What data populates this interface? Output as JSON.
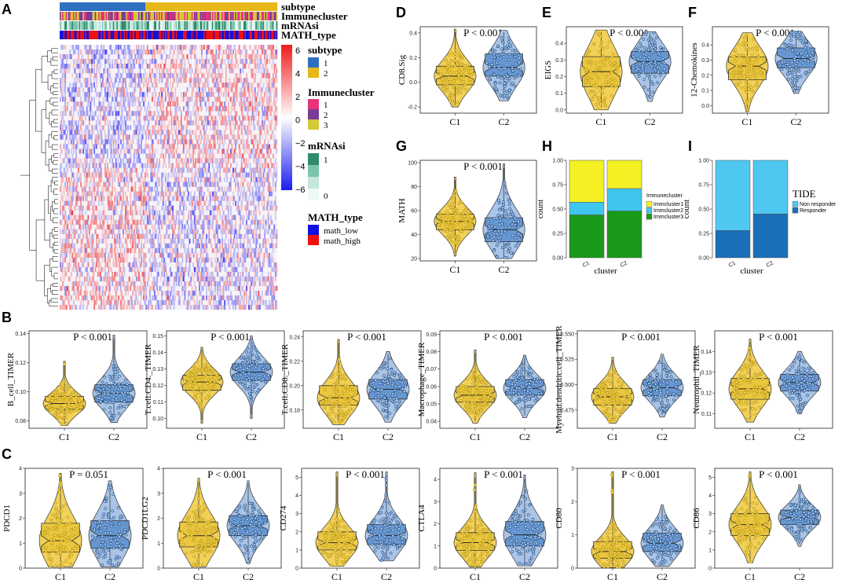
{
  "panel_letters": {
    "A": "A",
    "B": "B",
    "C": "C",
    "D": "D",
    "E": "E",
    "F": "F",
    "G": "G",
    "H": "H",
    "I": "I"
  },
  "colors": {
    "c1_fill": "#f2d15a",
    "c1_stroke": "#b8960a",
    "c1_box": "#e9c53a",
    "c2_fill": "#a9c4e6",
    "c2_stroke": "#1f4e87",
    "c2_box": "#5b8fcf",
    "heat_low": "#1c1cf0",
    "heat_mid": "#ffffff",
    "heat_high": "#f01c1c",
    "subtype1": "#2f6fc0",
    "subtype2": "#e8b818",
    "imm1": "#e8337a",
    "imm2": "#7a3c96",
    "imm3": "#d4c83a",
    "mrna_hi": "#2e8b6a",
    "mrna_lo": "#e8f5f2",
    "math_low": "#1010e0",
    "math_high": "#f01010",
    "h_imm1": "#f4f024",
    "h_imm2": "#3ec6ee",
    "h_imm3": "#1a9a1a",
    "i_nonresp": "#4ec8f0",
    "i_resp": "#1a6fb8"
  },
  "heatmap": {
    "annotations": [
      "subtype",
      "Immunecluster",
      "mRNAsi",
      "MATH_type"
    ],
    "colorbar_ticks": [
      "6",
      "4",
      "2",
      "0",
      "−2",
      "−4",
      "−6"
    ],
    "legend": {
      "subtype": {
        "title": "subtype",
        "items": [
          "1",
          "2"
        ]
      },
      "immunecluster": {
        "title": "Immunecluster",
        "items": [
          "1",
          "2",
          "3"
        ]
      },
      "mrnasi": {
        "title": "mRNAsi",
        "items": [
          "1",
          "0"
        ]
      },
      "math_type": {
        "title": "MATH_type",
        "items": [
          "math_low",
          "math_high"
        ]
      }
    }
  },
  "chart_data": [
    {
      "id": "D",
      "type": "violin",
      "ylabel": "CD8.Sig",
      "pvalue": "P < 0.001",
      "categories": [
        "C1",
        "C2"
      ],
      "ylim": [
        -0.25,
        0.45
      ],
      "yticks": [
        "-0.2",
        "0.0",
        "0.2",
        "0.4"
      ],
      "ytick_values": [
        -0.2,
        0.0,
        0.2,
        0.4
      ],
      "series": [
        {
          "name": "C1",
          "min": -0.2,
          "q1": -0.02,
          "median": 0.05,
          "q3": 0.13,
          "max": 0.43
        },
        {
          "name": "C2",
          "min": -0.15,
          "q1": 0.05,
          "median": 0.12,
          "q3": 0.23,
          "max": 0.42
        }
      ]
    },
    {
      "id": "E",
      "type": "violin",
      "ylabel": "EIGS",
      "pvalue": "P < 0.001",
      "categories": [
        "C1",
        "C2"
      ],
      "ylim": [
        -0.02,
        0.5
      ],
      "yticks": [
        "0.0",
        "0.1",
        "0.2",
        "0.3",
        "0.4"
      ],
      "ytick_values": [
        0.0,
        0.1,
        0.2,
        0.3,
        0.4
      ],
      "series": [
        {
          "name": "C1",
          "min": 0.0,
          "q1": 0.14,
          "median": 0.23,
          "q3": 0.32,
          "max": 0.48
        },
        {
          "name": "C2",
          "min": 0.05,
          "q1": 0.22,
          "median": 0.29,
          "q3": 0.35,
          "max": 0.47
        }
      ]
    },
    {
      "id": "F",
      "type": "violin",
      "ylabel": "12-Chemokines",
      "pvalue": "P < 0.001",
      "categories": [
        "C1",
        "C2"
      ],
      "ylim": [
        -0.05,
        0.52
      ],
      "yticks": [
        "0.0",
        "0.1",
        "0.2",
        "0.3",
        "0.4"
      ],
      "ytick_values": [
        0.0,
        0.1,
        0.2,
        0.3,
        0.4
      ],
      "series": [
        {
          "name": "C1",
          "min": -0.04,
          "q1": 0.17,
          "median": 0.26,
          "q3": 0.32,
          "max": 0.48
        },
        {
          "name": "C2",
          "min": 0.08,
          "q1": 0.25,
          "median": 0.31,
          "q3": 0.38,
          "max": 0.49
        }
      ]
    },
    {
      "id": "G",
      "type": "violin",
      "ylabel": "MATH",
      "pvalue": "P < 0.001",
      "categories": [
        "C1",
        "C2"
      ],
      "ylim": [
        18,
        102
      ],
      "yticks": [
        "20",
        "40",
        "60",
        "80",
        "100"
      ],
      "ytick_values": [
        20,
        40,
        60,
        80,
        100
      ],
      "series": [
        {
          "name": "C1",
          "min": 22,
          "q1": 44,
          "median": 51,
          "q3": 57,
          "max": 88
        },
        {
          "name": "C2",
          "min": 20,
          "q1": 34,
          "median": 44,
          "q3": 54,
          "max": 99
        }
      ]
    },
    {
      "id": "H",
      "type": "stacked_bar",
      "xlabel": "cluster",
      "ylabel": "count",
      "categories": [
        "C1",
        "C2"
      ],
      "ylim": [
        0,
        1
      ],
      "yticks": [
        "0.00",
        "0.25",
        "0.50",
        "0.75",
        "1.00"
      ],
      "ytick_values": [
        0,
        0.25,
        0.5,
        0.75,
        1.0
      ],
      "legend_title": "Immunecluster",
      "series": [
        {
          "name": "Immcluster3",
          "values": [
            0.44,
            0.48
          ]
        },
        {
          "name": "Immcluster2",
          "values": [
            0.13,
            0.23
          ]
        },
        {
          "name": "Immcluster1",
          "values": [
            0.43,
            0.29
          ]
        }
      ],
      "legend_order": [
        "Immcluster1",
        "Immcluster2",
        "Immcluster3"
      ]
    },
    {
      "id": "I",
      "type": "stacked_bar",
      "xlabel": "cluster",
      "ylabel": "count",
      "categories": [
        "C1",
        "C2"
      ],
      "ylim": [
        0,
        1
      ],
      "yticks": [
        "0.00",
        "0.25",
        "0.50",
        "0.75",
        "1.00"
      ],
      "ytick_values": [
        0,
        0.25,
        0.5,
        0.75,
        1.0
      ],
      "legend_title": "TIDE",
      "series": [
        {
          "name": "Responder",
          "values": [
            0.28,
            0.45
          ]
        },
        {
          "name": "Non responder",
          "values": [
            0.72,
            0.55
          ]
        }
      ],
      "legend_order": [
        "Non responder",
        "Responder"
      ]
    },
    {
      "id": "B1",
      "type": "violin",
      "ylabel": "B_cell_TIMER",
      "pvalue": "P < 0.001",
      "categories": [
        "C1",
        "C2"
      ],
      "ylim": [
        0.075,
        0.142
      ],
      "yticks": [
        "0.08",
        "0.10",
        "0.12",
        "0.14"
      ],
      "ytick_values": [
        0.08,
        0.1,
        0.12,
        0.14
      ],
      "series": [
        {
          "name": "C1",
          "min": 0.077,
          "q1": 0.088,
          "median": 0.092,
          "q3": 0.097,
          "max": 0.121
        },
        {
          "name": "C2",
          "min": 0.079,
          "q1": 0.093,
          "median": 0.099,
          "q3": 0.105,
          "max": 0.139
        }
      ]
    },
    {
      "id": "B2",
      "type": "violin",
      "ylabel": "T.cell.CD4._TIMER",
      "pvalue": "P < 0.001",
      "categories": [
        "C1",
        "C2"
      ],
      "ylim": [
        0.094,
        0.153
      ],
      "yticks": [
        "0.10",
        "0.11",
        "0.12",
        "0.13",
        "0.14",
        "0.15"
      ],
      "ytick_values": [
        0.1,
        0.11,
        0.12,
        0.13,
        0.14,
        0.15
      ],
      "series": [
        {
          "name": "C1",
          "min": 0.097,
          "q1": 0.117,
          "median": 0.122,
          "q3": 0.126,
          "max": 0.143
        },
        {
          "name": "C2",
          "min": 0.1,
          "q1": 0.123,
          "median": 0.128,
          "q3": 0.133,
          "max": 0.15
        }
      ]
    },
    {
      "id": "B3",
      "type": "violin",
      "ylabel": "T.cell.CD8._TIMER",
      "pvalue": "P < 0.001",
      "categories": [
        "C1",
        "C2"
      ],
      "ylim": [
        0.165,
        0.245
      ],
      "yticks": [
        "0.18",
        "0.20",
        "0.22",
        "0.24"
      ],
      "ytick_values": [
        0.18,
        0.2,
        0.22,
        0.24
      ],
      "series": [
        {
          "name": "C1",
          "min": 0.168,
          "q1": 0.184,
          "median": 0.19,
          "q3": 0.2,
          "max": 0.238
        },
        {
          "name": "C2",
          "min": 0.17,
          "q1": 0.189,
          "median": 0.197,
          "q3": 0.205,
          "max": 0.228
        }
      ]
    },
    {
      "id": "B4",
      "type": "violin",
      "ylabel": "Macrophage_TIMER",
      "pvalue": "P < 0.001",
      "categories": [
        "C1",
        "C2"
      ],
      "ylim": [
        0.036,
        0.092
      ],
      "yticks": [
        "0.04",
        "0.05",
        "0.06",
        "0.07",
        "0.08",
        "0.09"
      ],
      "ytick_values": [
        0.04,
        0.05,
        0.06,
        0.07,
        0.08,
        0.09
      ],
      "series": [
        {
          "name": "C1",
          "min": 0.039,
          "q1": 0.051,
          "median": 0.055,
          "q3": 0.06,
          "max": 0.081
        },
        {
          "name": "C2",
          "min": 0.042,
          "q1": 0.055,
          "median": 0.059,
          "q3": 0.064,
          "max": 0.078
        }
      ]
    },
    {
      "id": "B5",
      "type": "violin",
      "ylabel": "Myeloid.dendritic.cell_TIMER",
      "pvalue": "P < 0.001",
      "categories": [
        "C1",
        "C2"
      ],
      "ylim": [
        0.457,
        0.553
      ],
      "yticks": [
        "0.475",
        "0.500",
        "0.525",
        "0.550"
      ],
      "ytick_values": [
        0.475,
        0.5,
        0.525,
        0.55
      ],
      "series": [
        {
          "name": "C1",
          "min": 0.462,
          "q1": 0.48,
          "median": 0.488,
          "q3": 0.496,
          "max": 0.527
        },
        {
          "name": "C2",
          "min": 0.468,
          "q1": 0.489,
          "median": 0.497,
          "q3": 0.505,
          "max": 0.53
        }
      ]
    },
    {
      "id": "B6",
      "type": "violin",
      "ylabel": "Neutrophil_TIMER",
      "pvalue": "P < 0.001",
      "categories": [
        "C1",
        "C2"
      ],
      "ylim": [
        0.103,
        0.15
      ],
      "yticks": [
        "0.11",
        "0.12",
        "0.13",
        "0.14"
      ],
      "ytick_values": [
        0.11,
        0.12,
        0.13,
        0.14
      ],
      "series": [
        {
          "name": "C1",
          "min": 0.106,
          "q1": 0.117,
          "median": 0.122,
          "q3": 0.127,
          "max": 0.146
        },
        {
          "name": "C2",
          "min": 0.11,
          "q1": 0.121,
          "median": 0.125,
          "q3": 0.129,
          "max": 0.14
        }
      ]
    },
    {
      "id": "C1p",
      "type": "violin",
      "ylabel": "PDCD1",
      "pvalue": "P = 0.051",
      "categories": [
        "C1",
        "C2"
      ],
      "ylim": [
        0,
        4
      ],
      "yticks": [
        "0",
        "1",
        "2",
        "3",
        "4"
      ],
      "ytick_values": [
        0,
        1,
        2,
        3,
        4
      ],
      "series": [
        {
          "name": "C1",
          "min": 0.05,
          "q1": 0.65,
          "median": 1.1,
          "q3": 1.8,
          "max": 3.8
        },
        {
          "name": "C2",
          "min": 0.05,
          "q1": 0.8,
          "median": 1.3,
          "q3": 1.9,
          "max": 3.5
        }
      ]
    },
    {
      "id": "C2p",
      "type": "violin",
      "ylabel": "PDCD1LG2",
      "pvalue": "P < 0.001",
      "categories": [
        "C1",
        "C2"
      ],
      "ylim": [
        0,
        4
      ],
      "yticks": [
        "0",
        "1",
        "2",
        "3",
        "4"
      ],
      "ytick_values": [
        0,
        1,
        2,
        3,
        4
      ],
      "series": [
        {
          "name": "C1",
          "min": 0.05,
          "q1": 0.85,
          "median": 1.3,
          "q3": 1.85,
          "max": 3.6
        },
        {
          "name": "C2",
          "min": 0.2,
          "q1": 1.3,
          "median": 1.7,
          "q3": 2.1,
          "max": 3.5
        }
      ]
    },
    {
      "id": "C3p",
      "type": "violin",
      "ylabel": "CD274",
      "pvalue": "P < 0.001",
      "categories": [
        "C1",
        "C2"
      ],
      "ylim": [
        0,
        5.5
      ],
      "yticks": [
        "0",
        "1",
        "2",
        "3",
        "4",
        "5"
      ],
      "ytick_values": [
        0,
        1,
        2,
        3,
        4,
        5
      ],
      "series": [
        {
          "name": "C1",
          "min": 0.1,
          "q1": 1.0,
          "median": 1.4,
          "q3": 2.0,
          "max": 5.3
        },
        {
          "name": "C2",
          "min": 0.4,
          "q1": 1.3,
          "median": 1.8,
          "q3": 2.4,
          "max": 5.3
        }
      ]
    },
    {
      "id": "C4p",
      "type": "violin",
      "ylabel": "CTLA4",
      "pvalue": "P < 0.001",
      "categories": [
        "C1",
        "C2"
      ],
      "ylim": [
        0,
        4.5
      ],
      "yticks": [
        "0",
        "1",
        "2",
        "3",
        "4"
      ],
      "ytick_values": [
        0,
        1,
        2,
        3,
        4
      ],
      "series": [
        {
          "name": "C1",
          "min": 0.05,
          "q1": 0.8,
          "median": 1.15,
          "q3": 1.6,
          "max": 4.3
        },
        {
          "name": "C2",
          "min": 0.1,
          "q1": 1.0,
          "median": 1.5,
          "q3": 2.1,
          "max": 4.2
        }
      ]
    },
    {
      "id": "C5p",
      "type": "violin",
      "ylabel": "CD80",
      "pvalue": "P < 0.001",
      "categories": [
        "C1",
        "C2"
      ],
      "ylim": [
        0,
        3
      ],
      "yticks": [
        "0",
        "1",
        "2",
        "3"
      ],
      "ytick_values": [
        0,
        1,
        2,
        3
      ],
      "series": [
        {
          "name": "C1",
          "min": 0.02,
          "q1": 0.3,
          "median": 0.5,
          "q3": 0.8,
          "max": 2.9
        },
        {
          "name": "C2",
          "min": 0.05,
          "q1": 0.5,
          "median": 0.75,
          "q3": 1.05,
          "max": 1.9
        }
      ]
    },
    {
      "id": "C6p",
      "type": "violin",
      "ylabel": "CD86",
      "pvalue": "P < 0.001",
      "categories": [
        "C1",
        "C2"
      ],
      "ylim": [
        0,
        5.5
      ],
      "yticks": [
        "0",
        "1",
        "2",
        "3",
        "4",
        "5"
      ],
      "ytick_values": [
        0,
        1,
        2,
        3,
        4,
        5
      ],
      "series": [
        {
          "name": "C1",
          "min": 0.3,
          "q1": 1.8,
          "median": 2.4,
          "q3": 3.0,
          "max": 5.3
        },
        {
          "name": "C2",
          "min": 1.2,
          "q1": 2.4,
          "median": 2.8,
          "q3": 3.2,
          "max": 4.6
        }
      ]
    }
  ]
}
